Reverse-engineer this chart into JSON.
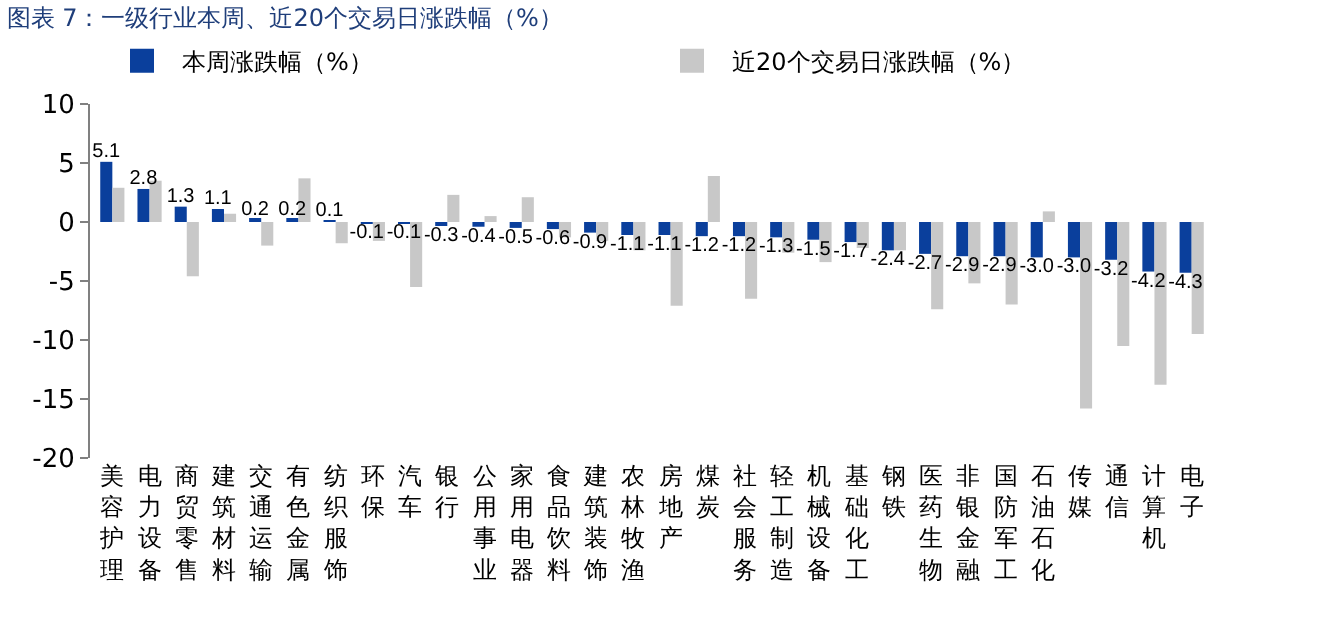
{
  "chart_data": {
    "type": "bar",
    "title": "图表 7：一级行业本周、近20个交易日涨跌幅（%）",
    "categories": [
      "美容护理",
      "电力设备",
      "商贸零售",
      "建筑材料",
      "交通运输",
      "有色金属",
      "纺织服饰",
      "环保",
      "汽车",
      "银行",
      "公用事业",
      "家用电器",
      "食品饮料",
      "建筑装饰",
      "农林牧渔",
      "房地产",
      "煤炭",
      "社会服务",
      "轻工制造",
      "机械设备",
      "基础化工",
      "钢铁",
      "医药生物",
      "非银金融",
      "国防军工",
      "石油石化",
      "传媒",
      "通信",
      "计算机",
      "电子"
    ],
    "series": [
      {
        "name": "本周涨跌幅（%）",
        "color": "#0a3f9c",
        "values": [
          5.1,
          2.8,
          1.3,
          1.1,
          0.2,
          0.2,
          0.1,
          -0.1,
          -0.1,
          -0.3,
          -0.4,
          -0.5,
          -0.6,
          -0.9,
          -1.1,
          -1.1,
          -1.2,
          -1.2,
          -1.3,
          -1.5,
          -1.7,
          -2.4,
          -2.7,
          -2.9,
          -2.9,
          -3.0,
          -3.0,
          -3.2,
          -4.2,
          -4.3
        ],
        "value_labels": [
          "5.1",
          "2.8",
          "1.3",
          "1.1",
          "0.2",
          "0.2",
          "0.1",
          "-0.1",
          "-0.1",
          "-0.3",
          "-0.4",
          "-0.5",
          "-0.6",
          "-0.9",
          "-1.1",
          "-1.1",
          "-1.2",
          "-1.2",
          "-1.3",
          "-1.5",
          "-1.7",
          "-2.4",
          "-2.7",
          "-2.9",
          "-2.9",
          "-3.0",
          "-3.0",
          "-3.2",
          "-4.2",
          "-4.3"
        ]
      },
      {
        "name": "近20个交易日涨跌幅（%）",
        "color": "#c8c8c8",
        "values": [
          2.9,
          3.5,
          -4.6,
          0.7,
          -2.0,
          3.7,
          -1.8,
          -1.6,
          -5.5,
          2.3,
          0.5,
          2.1,
          -1.3,
          -1.6,
          -2.4,
          -7.1,
          3.9,
          -6.5,
          -2.6,
          -3.4,
          -2.2,
          -2.4,
          -7.4,
          -5.2,
          -7.0,
          0.9,
          -15.8,
          -10.5,
          -13.8,
          -9.5
        ]
      }
    ],
    "ylim": [
      -20,
      10
    ],
    "yticks": [
      -20,
      -15,
      -10,
      -5,
      0,
      5,
      10
    ],
    "grid": false,
    "legend": "top"
  }
}
